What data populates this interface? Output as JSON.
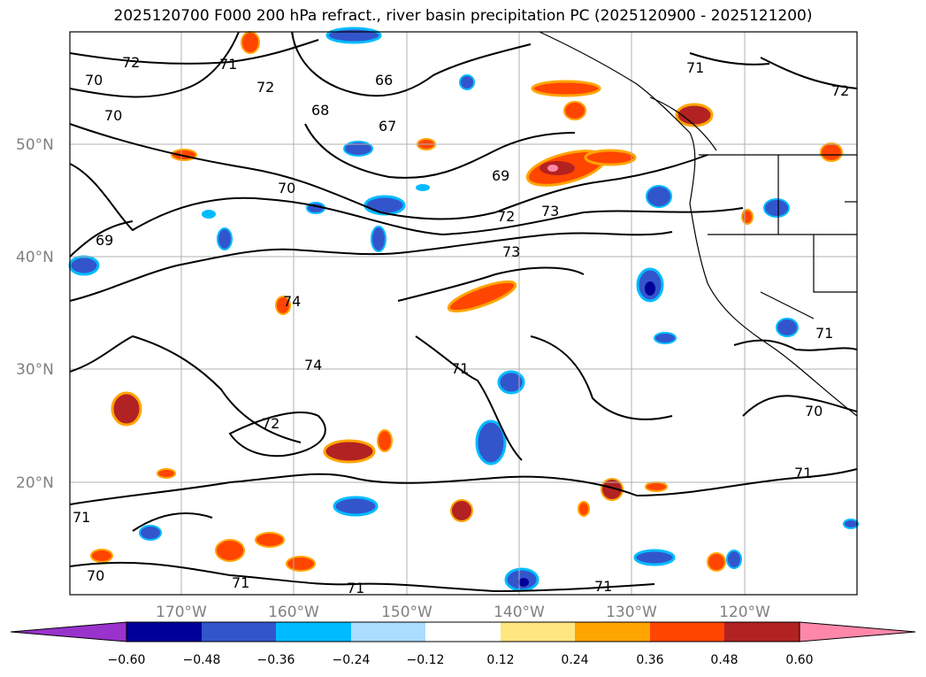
{
  "title": "2025120700 F000 200 hPa refract., river basin precipitation PC (2025120900 - 2025121200)",
  "map": {
    "lon_labels": [
      "170°W",
      "160°W",
      "150°W",
      "140°W",
      "130°W",
      "120°W"
    ],
    "lat_labels": [
      "50°N",
      "40°N",
      "30°N",
      "20°N"
    ],
    "contour_labels": [
      "72",
      "70",
      "70",
      "69",
      "70",
      "71",
      "72",
      "66",
      "68",
      "67",
      "69",
      "72",
      "73",
      "73",
      "71",
      "72",
      "74",
      "74",
      "71",
      "72",
      "71",
      "70",
      "71",
      "71",
      "71",
      "70",
      "71",
      "71"
    ]
  },
  "colorbar": {
    "ticks": [
      "−0.60",
      "−0.48",
      "−0.36",
      "−0.24",
      "−0.12",
      "0.12",
      "0.24",
      "0.36",
      "0.48",
      "0.60"
    ],
    "colors": [
      "#9933cc",
      "#000099",
      "#3355cc",
      "#00bbff",
      "#aaddff",
      "#ffffff",
      "#ffe680",
      "#ffa500",
      "#ff4500",
      "#b22222",
      "#ff88aa"
    ]
  }
}
